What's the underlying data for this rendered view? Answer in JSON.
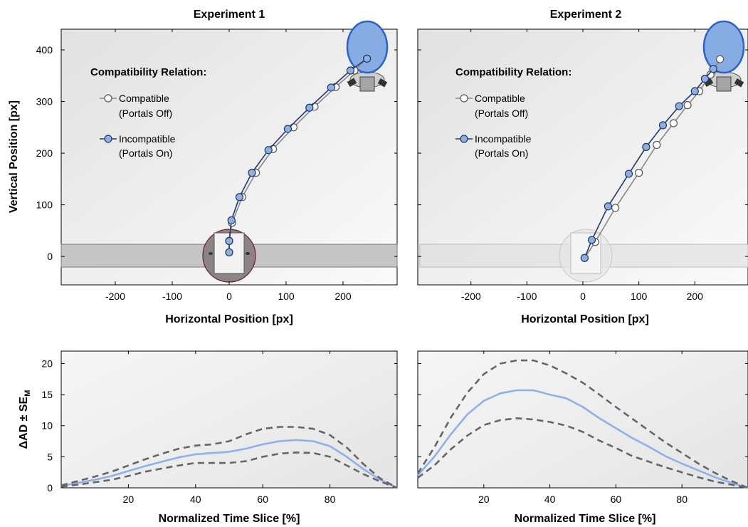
{
  "chart_data": [
    {
      "type": "line",
      "title": "Experiment 1",
      "xlabel": "Horizontal Position [px]",
      "ylabel": "Vertical Position [px]",
      "xlim": [
        -295,
        295
      ],
      "ylim": [
        -55,
        440
      ],
      "xticks": [
        -200,
        -100,
        0,
        100,
        200
      ],
      "xtick_labels": [
        "-200",
        "-100",
        "0",
        "100",
        "200"
      ],
      "yticks": [
        0,
        100,
        200,
        300,
        400
      ],
      "ytick_labels": [
        "0",
        "100",
        "200",
        "300",
        "400"
      ],
      "legend": {
        "title": "Compatibility Relation:",
        "entries": [
          {
            "line1": "Compatible",
            "line2": "(Portals Off)"
          },
          {
            "line1": "Incompatible",
            "line2": "(Portals On)"
          }
        ]
      },
      "series": [
        {
          "name": "Compatible (Portals Off)",
          "color": "#888888",
          "marker_fill": "#ffffff",
          "x": [
            0,
            0,
            5,
            23,
            47,
            77,
            113,
            150,
            187,
            220,
            242
          ],
          "y": [
            8,
            30,
            65,
            115,
            162,
            208,
            250,
            290,
            328,
            360,
            383
          ]
        },
        {
          "name": "Incompatible (Portals On)",
          "color": "#1e3a6e",
          "marker_fill": "#8fb0df",
          "x": [
            0,
            0,
            4,
            18,
            40,
            69,
            103,
            141,
            179,
            213,
            242
          ],
          "y": [
            8,
            30,
            70,
            115,
            162,
            206,
            247,
            288,
            327,
            360,
            383
          ]
        }
      ]
    },
    {
      "type": "line",
      "title": "Experiment 2",
      "xlabel": "Horizontal Position [px]",
      "ylabel": "",
      "xlim": [
        -295,
        295
      ],
      "ylim": [
        -55,
        440
      ],
      "xticks": [
        -200,
        -100,
        0,
        100,
        200
      ],
      "xtick_labels": [
        "-200",
        "-100",
        "0",
        "100",
        "200"
      ],
      "yticks": [
        0,
        100,
        200,
        300,
        400
      ],
      "legend": {
        "title": "Compatibility Relation:",
        "entries": [
          {
            "line1": "Compatible",
            "line2": "(Portals Off)"
          },
          {
            "line1": "Incompatible",
            "line2": "(Portals On)"
          }
        ]
      },
      "series": [
        {
          "name": "Compatible (Portals Off)",
          "color": "#888888",
          "marker_fill": "#ffffff",
          "x": [
            3,
            22,
            58,
            100,
            132,
            162,
            187,
            208,
            228,
            245
          ],
          "y": [
            -3,
            28,
            94,
            162,
            216,
            258,
            293,
            320,
            352,
            382
          ]
        },
        {
          "name": "Incompatible (Portals On)",
          "color": "#1e3a6e",
          "marker_fill": "#8fb0df",
          "x": [
            3,
            16,
            45,
            82,
            113,
            143,
            172,
            200,
            218,
            233
          ],
          "y": [
            -3,
            32,
            97,
            160,
            212,
            254,
            291,
            320,
            344,
            363
          ]
        }
      ]
    },
    {
      "type": "line",
      "title": "",
      "xlabel": "Normalized Time Slice [%]",
      "ylabel": "ΔAD ± SE",
      "ylabel_subscript": "M",
      "xlim": [
        0,
        100
      ],
      "ylim": [
        0,
        22
      ],
      "xticks": [
        20,
        40,
        60,
        80
      ],
      "xtick_labels": [
        "20",
        "40",
        "60",
        "80"
      ],
      "yticks": [
        0,
        5,
        10,
        15,
        20
      ],
      "ytick_labels": [
        "0",
        "5",
        "10",
        "15",
        "20"
      ],
      "series": [
        {
          "style": "mean",
          "color": "#8fb0e8",
          "x": [
            0,
            5,
            10,
            15,
            20,
            25,
            30,
            35,
            40,
            45,
            50,
            55,
            60,
            65,
            70,
            75,
            80,
            85,
            90,
            95,
            100
          ],
          "y": [
            0.3,
            0.8,
            1.3,
            1.9,
            2.7,
            3.5,
            4.2,
            4.9,
            5.4,
            5.6,
            5.8,
            6.3,
            7.0,
            7.5,
            7.7,
            7.5,
            6.7,
            5.0,
            3.0,
            1.3,
            0
          ]
        },
        {
          "style": "upper",
          "color": "#666666",
          "x": [
            0,
            5,
            10,
            15,
            20,
            25,
            30,
            35,
            40,
            45,
            50,
            55,
            60,
            65,
            70,
            75,
            80,
            85,
            90,
            95,
            100
          ],
          "y": [
            0.4,
            1.1,
            1.8,
            2.6,
            3.6,
            4.6,
            5.5,
            6.3,
            6.8,
            7.0,
            7.5,
            8.6,
            9.5,
            9.8,
            9.8,
            9.5,
            8.5,
            6.5,
            3.8,
            1.5,
            0
          ]
        },
        {
          "style": "lower",
          "color": "#666666",
          "x": [
            0,
            5,
            10,
            15,
            20,
            25,
            30,
            35,
            40,
            45,
            50,
            55,
            60,
            65,
            70,
            75,
            80,
            85,
            90,
            95,
            100
          ],
          "y": [
            0.2,
            0.5,
            0.9,
            1.3,
            1.9,
            2.6,
            3.1,
            3.6,
            4.0,
            4.0,
            4.0,
            4.3,
            5.0,
            5.5,
            5.7,
            5.6,
            5.0,
            3.6,
            2.2,
            1.0,
            0
          ]
        }
      ]
    },
    {
      "type": "line",
      "title": "",
      "xlabel": "Normalized Time Slice [%]",
      "ylabel": "",
      "xlim": [
        0,
        100
      ],
      "ylim": [
        0,
        22
      ],
      "xticks": [
        20,
        40,
        60,
        80
      ],
      "xtick_labels": [
        "20",
        "40",
        "60",
        "80"
      ],
      "yticks": [
        0,
        5,
        10,
        15,
        20
      ],
      "series": [
        {
          "style": "mean",
          "color": "#8fb0e8",
          "x": [
            0,
            5,
            10,
            15,
            20,
            25,
            30,
            35,
            40,
            45,
            50,
            55,
            60,
            65,
            70,
            75,
            80,
            85,
            90,
            95,
            100
          ],
          "y": [
            2.0,
            5.0,
            8.6,
            11.8,
            14.0,
            15.2,
            15.7,
            15.7,
            15.0,
            14.4,
            13.0,
            11.2,
            9.6,
            8.0,
            6.6,
            5.1,
            3.9,
            2.8,
            1.7,
            0.8,
            0
          ]
        },
        {
          "style": "upper",
          "color": "#666666",
          "x": [
            0,
            5,
            10,
            15,
            20,
            25,
            30,
            35,
            40,
            45,
            50,
            55,
            60,
            65,
            70,
            75,
            80,
            85,
            90,
            95,
            100
          ],
          "y": [
            2.3,
            6.5,
            11.3,
            15.3,
            18.3,
            20.0,
            20.5,
            20.5,
            19.7,
            18.4,
            16.9,
            15.0,
            13.0,
            11.1,
            9.2,
            7.3,
            5.6,
            3.9,
            2.4,
            1.1,
            0
          ]
        },
        {
          "style": "lower",
          "color": "#666666",
          "x": [
            0,
            5,
            10,
            15,
            20,
            25,
            30,
            35,
            40,
            45,
            50,
            55,
            60,
            65,
            70,
            75,
            80,
            85,
            90,
            95,
            100
          ],
          "y": [
            1.6,
            3.6,
            6.2,
            8.4,
            10.1,
            10.9,
            11.2,
            11.0,
            10.6,
            10.0,
            9.0,
            7.6,
            6.4,
            5.1,
            4.2,
            3.3,
            2.5,
            1.7,
            1.0,
            0.5,
            0
          ]
        }
      ]
    }
  ]
}
